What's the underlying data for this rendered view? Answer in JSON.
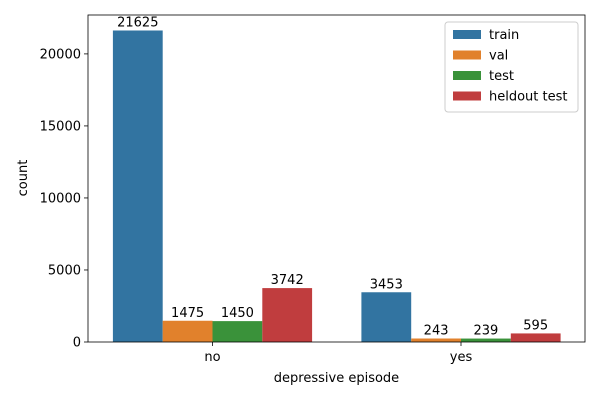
{
  "chart_data": {
    "type": "bar",
    "categories": [
      "no",
      "yes"
    ],
    "series": [
      {
        "name": "train",
        "color": "#3274a1",
        "values": [
          21625,
          3453
        ]
      },
      {
        "name": "val",
        "color": "#e1812c",
        "values": [
          1475,
          243
        ]
      },
      {
        "name": "test",
        "color": "#3a923a",
        "values": [
          1450,
          239
        ]
      },
      {
        "name": "heldout test",
        "color": "#c03d3e",
        "values": [
          3742,
          595
        ]
      }
    ],
    "xlabel": "depressive episode",
    "ylabel": "count",
    "ylim": [
      0,
      22700
    ],
    "yticks": [
      0,
      5000,
      10000,
      15000,
      20000
    ],
    "grid": false,
    "legend_position": "top-right"
  }
}
